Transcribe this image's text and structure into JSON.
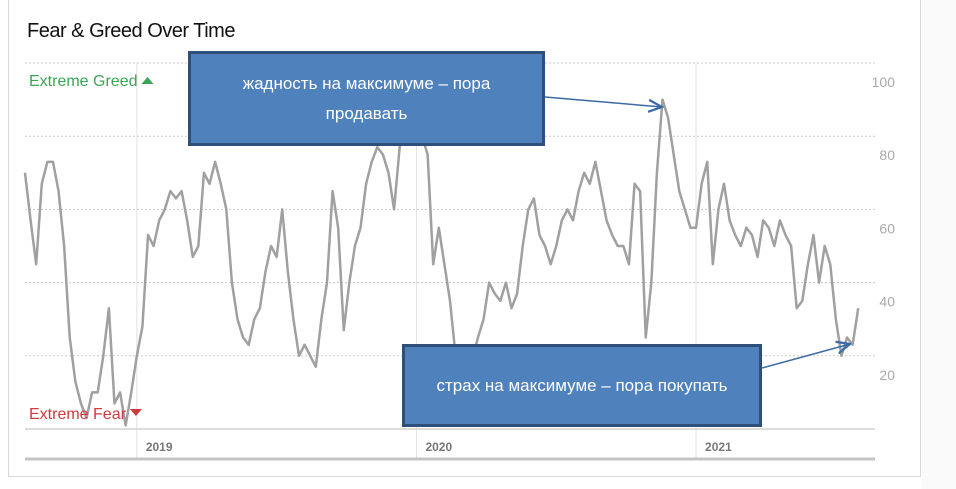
{
  "chart_data": {
    "type": "line",
    "title": "Fear & Greed Over Time",
    "top_label": "Extreme Greed",
    "bottom_label": "Extreme Fear",
    "annotations": [
      "жадность на максимуме – пора продавать",
      "страх на максимуме – пора покупать"
    ],
    "color": "#a0a0a0",
    "grid": true,
    "xlim": [
      2018.6,
      2021.64
    ],
    "xticks": [
      2019,
      2020,
      2021
    ],
    "ylim": [
      0,
      100
    ],
    "yticks": [
      20,
      40,
      60,
      80,
      100
    ],
    "x": [
      2018.6,
      2018.62,
      2018.64,
      2018.66,
      2018.68,
      2018.7,
      2018.72,
      2018.74,
      2018.76,
      2018.78,
      2018.8,
      2018.82,
      2018.84,
      2018.86,
      2018.88,
      2018.9,
      2018.92,
      2018.94,
      2018.96,
      2018.98,
      2019,
      2019.02,
      2019.04,
      2019.06,
      2019.08,
      2019.1,
      2019.12,
      2019.14,
      2019.16,
      2019.18,
      2019.2,
      2019.22,
      2019.24,
      2019.26,
      2019.28,
      2019.3,
      2019.32,
      2019.34,
      2019.36,
      2019.38,
      2019.4,
      2019.42,
      2019.44,
      2019.46,
      2019.48,
      2019.5,
      2019.52,
      2019.54,
      2019.56,
      2019.58,
      2019.6,
      2019.62,
      2019.64,
      2019.66,
      2019.68,
      2019.7,
      2019.72,
      2019.74,
      2019.76,
      2019.78,
      2019.8,
      2019.82,
      2019.84,
      2019.86,
      2019.88,
      2019.9,
      2019.92,
      2019.94,
      2019.96,
      2019.98,
      2020,
      2020.02,
      2020.04,
      2020.06,
      2020.08,
      2020.1,
      2020.12,
      2020.14,
      2020.16,
      2020.18,
      2020.2,
      2020.22,
      2020.24,
      2020.26,
      2020.28,
      2020.3,
      2020.32,
      2020.34,
      2020.36,
      2020.38,
      2020.4,
      2020.42,
      2020.44,
      2020.46,
      2020.48,
      2020.5,
      2020.52,
      2020.54,
      2020.56,
      2020.58,
      2020.6,
      2020.62,
      2020.64,
      2020.66,
      2020.68,
      2020.7,
      2020.72,
      2020.74,
      2020.76,
      2020.78,
      2020.8,
      2020.82,
      2020.84,
      2020.86,
      2020.88,
      2020.9,
      2020.92,
      2020.94,
      2020.96,
      2020.98,
      2021,
      2021.02,
      2021.04,
      2021.06,
      2021.08,
      2021.1,
      2021.12,
      2021.14,
      2021.16,
      2021.18,
      2021.2,
      2021.22,
      2021.24,
      2021.26,
      2021.28,
      2021.3,
      2021.32,
      2021.34,
      2021.36,
      2021.38,
      2021.4,
      2021.42,
      2021.44,
      2021.46,
      2021.48,
      2021.5,
      2021.52,
      2021.54,
      2021.56,
      2021.58
    ],
    "values": [
      70,
      57,
      45,
      67,
      73,
      73,
      65,
      50,
      25,
      13,
      7,
      3,
      10,
      10,
      20,
      33,
      7,
      10,
      1,
      10,
      20,
      28,
      53,
      50,
      57,
      60,
      65,
      63,
      65,
      57,
      47,
      50,
      70,
      67,
      73,
      67,
      60,
      40,
      30,
      25,
      23,
      30,
      33,
      43,
      50,
      47,
      60,
      43,
      30,
      20,
      23,
      20,
      17,
      30,
      40,
      65,
      55,
      27,
      40,
      50,
      55,
      67,
      73,
      77,
      75,
      70,
      60,
      77,
      90,
      95,
      90,
      80,
      75,
      45,
      55,
      45,
      35,
      20,
      17,
      17,
      19,
      25,
      30,
      40,
      37,
      35,
      40,
      33,
      37,
      50,
      60,
      63,
      53,
      50,
      45,
      50,
      57,
      60,
      57,
      65,
      70,
      67,
      73,
      65,
      57,
      53,
      50,
      50,
      45,
      67,
      65,
      25,
      40,
      70,
      90,
      85,
      75,
      65,
      60,
      55,
      55,
      67,
      73,
      45,
      60,
      67,
      57,
      53,
      50,
      55,
      53,
      47,
      57,
      55,
      50,
      57,
      53,
      50,
      33,
      35,
      45,
      53,
      40,
      50,
      45,
      30,
      20,
      25,
      23,
      33
    ]
  }
}
